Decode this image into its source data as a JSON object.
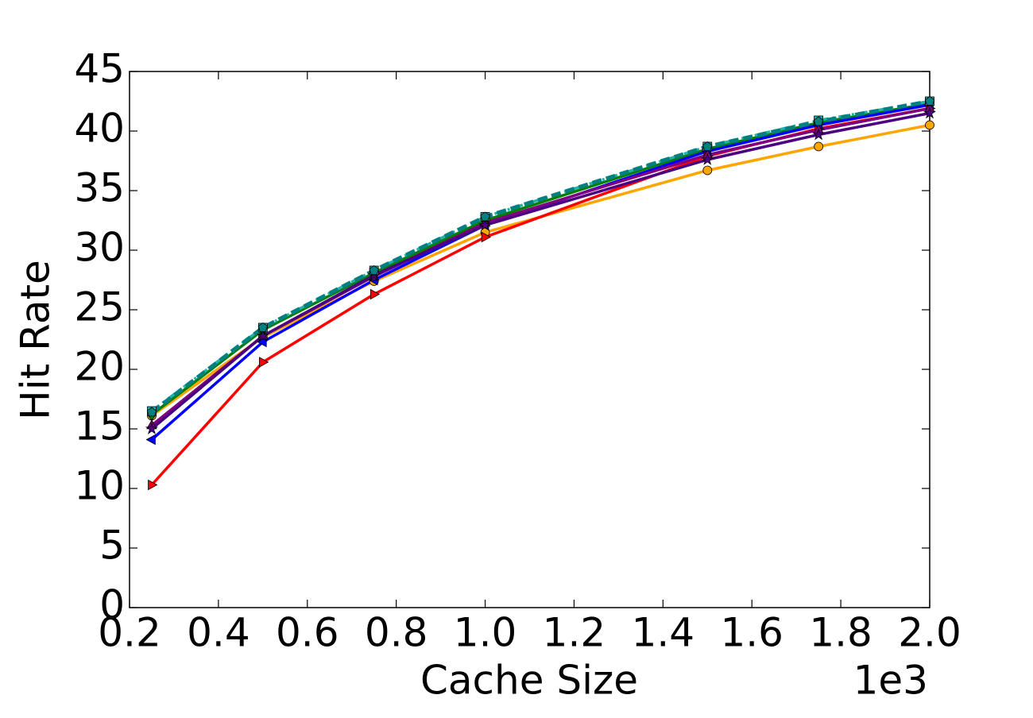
{
  "chart_data": {
    "type": "line",
    "x_label": "Cache Size",
    "y_label": "Hit Rate",
    "x_offset_label": "1e3",
    "x": [
      0.25,
      0.5,
      0.75,
      1.0,
      1.5,
      1.75,
      2.0
    ],
    "xlim": [
      0.2,
      2.0
    ],
    "xticks": [
      0.2,
      0.4,
      0.6,
      0.8,
      {
        "value": 1,
        "label": "1.0"
      },
      1.2,
      1.4,
      1.6,
      1.8,
      {
        "value": 2,
        "label": "2.0"
      }
    ],
    "ylim": [
      0,
      45
    ],
    "yticks": [
      0,
      5,
      10,
      15,
      20,
      25,
      30,
      35,
      40,
      45
    ],
    "grid": false,
    "series": [
      {
        "color": "#ffa500",
        "marker": "circle",
        "dash": "solid",
        "values": [
          16.1,
          22.7,
          27.4,
          31.5,
          36.7,
          38.7,
          40.5
        ]
      },
      {
        "color": "#008000",
        "marker": "diamond",
        "dash": "solid",
        "values": [
          16.2,
          23.3,
          28.1,
          32.5,
          38.5,
          40.7,
          42.3
        ]
      },
      {
        "color": "#ff0000",
        "marker": "triangle-right",
        "dash": "solid",
        "values": [
          10.3,
          20.6,
          26.3,
          31.1,
          37.9,
          40.2,
          41.9
        ]
      },
      {
        "color": "#0000ff",
        "marker": "triangle-left",
        "dash": "solid",
        "values": [
          14.1,
          22.3,
          27.5,
          32.1,
          38.3,
          40.5,
          42.2
        ]
      },
      {
        "color": "#800080",
        "marker": "triangle-up",
        "dash": "solid",
        "values": [
          15.3,
          22.8,
          27.8,
          32.3,
          38.0,
          40.1,
          41.9
        ]
      },
      {
        "color": "#4b0082",
        "marker": "star",
        "dash": "solid",
        "values": [
          15.0,
          22.8,
          27.9,
          32.1,
          37.6,
          39.7,
          41.5
        ]
      },
      {
        "color": "#20b2aa",
        "marker": "square",
        "dash": "dashdot",
        "values": [
          16.5,
          23.5,
          28.3,
          32.8,
          38.7,
          40.9,
          42.5
        ]
      },
      {
        "color": "#008080",
        "marker": "pentagon",
        "dash": "dashed",
        "values": [
          16.4,
          23.5,
          28.3,
          32.8,
          38.7,
          40.8,
          42.5
        ]
      }
    ]
  }
}
